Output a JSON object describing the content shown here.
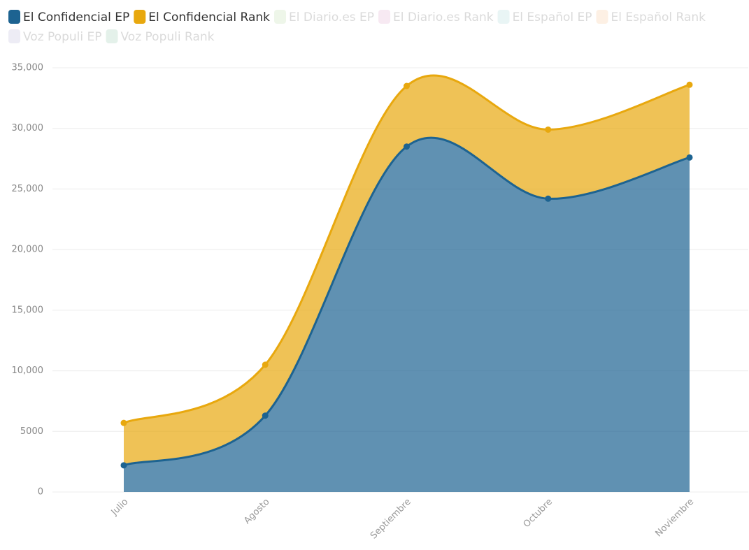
{
  "chart_data": {
    "type": "stacked_area",
    "categories": [
      "Julio",
      "Agosto",
      "Septiembre",
      "Octubre",
      "Noviembre"
    ],
    "series": [
      {
        "name": "El Confidencial EP",
        "color": "#1d6391",
        "visible": true,
        "values": [
          2200,
          6300,
          28500,
          24200,
          27600
        ]
      },
      {
        "name": "El Confidencial Rank",
        "color": "#e8a80e",
        "visible": true,
        "values": [
          3500,
          4200,
          5000,
          5700,
          6000
        ]
      },
      {
        "name": "El Diario.es EP",
        "color": "#c9e3b9",
        "visible": false,
        "values": [
          null,
          null,
          null,
          null,
          null
        ]
      },
      {
        "name": "El Diario.es Rank",
        "color": "#e6b8d6",
        "visible": false,
        "values": [
          null,
          null,
          null,
          null,
          null
        ]
      },
      {
        "name": "El Español EP",
        "color": "#b7e0e0",
        "visible": false,
        "values": [
          null,
          null,
          null,
          null,
          null
        ]
      },
      {
        "name": "El Español Rank",
        "color": "#f9d0a8",
        "visible": false,
        "values": [
          null,
          null,
          null,
          null,
          null
        ]
      },
      {
        "name": "Voz Populi EP",
        "color": "#c6c3e0",
        "visible": false,
        "values": [
          null,
          null,
          null,
          null,
          null
        ]
      },
      {
        "name": "Voz Populi Rank",
        "color": "#a8d4bd",
        "visible": false,
        "values": [
          null,
          null,
          null,
          null,
          null
        ]
      }
    ],
    "ylim": [
      0,
      35000
    ],
    "yticks": [
      0,
      5000,
      {
        "value": 10000,
        "label": "10,000"
      },
      {
        "value": 15000,
        "label": "15,000"
      },
      {
        "value": 20000,
        "label": "20,000"
      },
      {
        "value": 25000,
        "label": "25,000"
      },
      {
        "value": 30000,
        "label": "30,000"
      },
      {
        "value": 35000,
        "label": "35,000"
      }
    ],
    "grid": true
  }
}
